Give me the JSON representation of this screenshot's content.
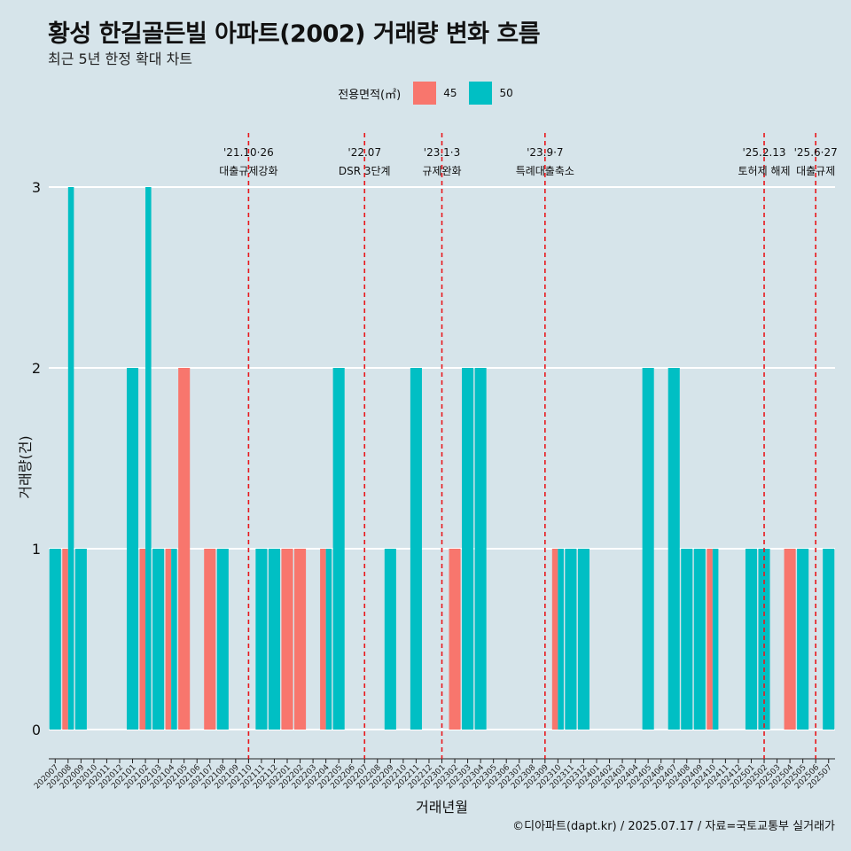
{
  "title": "황성 한길골든빌 아파트(2002) 거래량 변화 흐름",
  "subtitle": "최근 5년 한정 확대 차트",
  "caption": "©디아파트(dapt.kr) / 2025.07.17 / 자료=국토교통부 실거래가",
  "legend": {
    "title": "전용면적(㎡)",
    "items": [
      {
        "label": "45",
        "color": "#f8766d"
      },
      {
        "label": "50",
        "color": "#00bfc4"
      }
    ]
  },
  "chart_data": {
    "type": "bar",
    "xlabel": "거래년월",
    "ylabel": "거래량(건)",
    "ylim": [
      0,
      3
    ],
    "yticks": [
      0,
      1,
      2,
      3
    ],
    "grid": true,
    "legend_position": "top",
    "categories": [
      "202007",
      "202008",
      "202009",
      "202010",
      "202011",
      "202012",
      "202101",
      "202102",
      "202103",
      "202104",
      "202105",
      "202106",
      "202107",
      "202108",
      "202109",
      "202110",
      "202111",
      "202112",
      "202201",
      "202202",
      "202203",
      "202204",
      "202205",
      "202206",
      "202207",
      "202208",
      "202209",
      "202210",
      "202211",
      "202212",
      "202301",
      "202302",
      "202303",
      "202304",
      "202305",
      "202306",
      "202307",
      "202308",
      "202309",
      "202310",
      "202311",
      "202312",
      "202401",
      "202402",
      "202403",
      "202404",
      "202405",
      "202406",
      "202407",
      "202408",
      "202409",
      "202410",
      "202411",
      "202412",
      "202501",
      "202502",
      "202503",
      "202504",
      "202505",
      "202506",
      "202507"
    ],
    "series": [
      {
        "name": "45",
        "color": "#f8766d",
        "values": [
          0,
          1,
          0,
          0,
          0,
          0,
          0,
          1,
          0,
          1,
          2,
          0,
          1,
          0,
          0,
          0,
          0,
          0,
          1,
          1,
          0,
          1,
          0,
          0,
          0,
          0,
          0,
          0,
          0,
          0,
          0,
          1,
          0,
          0,
          0,
          0,
          0,
          0,
          0,
          1,
          0,
          0,
          0,
          0,
          0,
          0,
          0,
          0,
          0,
          0,
          0,
          1,
          0,
          0,
          0,
          0,
          0,
          1,
          0,
          0,
          0
        ]
      },
      {
        "name": "50",
        "color": "#00bfc4",
        "values": [
          1,
          3,
          1,
          0,
          0,
          0,
          2,
          3,
          1,
          1,
          0,
          0,
          0,
          1,
          0,
          0,
          1,
          1,
          0,
          0,
          0,
          1,
          2,
          0,
          0,
          0,
          1,
          0,
          2,
          0,
          0,
          0,
          2,
          2,
          0,
          0,
          0,
          0,
          0,
          1,
          1,
          1,
          0,
          0,
          0,
          0,
          2,
          0,
          2,
          1,
          1,
          1,
          0,
          0,
          1,
          1,
          0,
          0,
          1,
          0,
          1
        ]
      }
    ],
    "annotations": [
      {
        "month": "202110",
        "date": "'21.10·26",
        "label": "대출규제강화"
      },
      {
        "month": "202207",
        "date": "'22.07",
        "label": "DSR 3단계"
      },
      {
        "month": "202301",
        "date": "'23.1·3",
        "label": "규제완화"
      },
      {
        "month": "202309",
        "date": "'23.9·7",
        "label": "특례대출축소"
      },
      {
        "month": "202502",
        "date": "'25.2.13",
        "label": "토허제 해제"
      },
      {
        "month": "202506",
        "date": "'25.6·27",
        "label": "대출규제"
      }
    ]
  }
}
